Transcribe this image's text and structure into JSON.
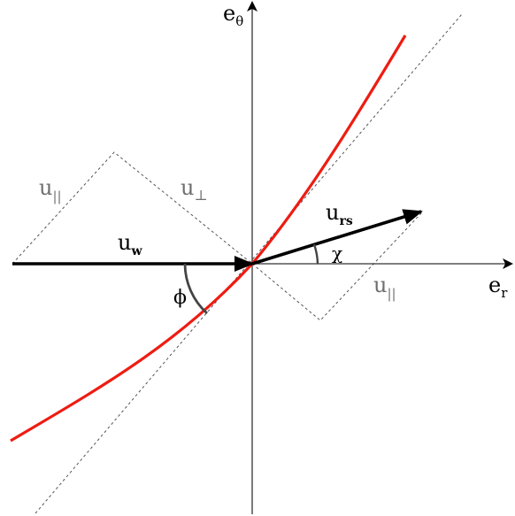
{
  "axes": {
    "e_r": {
      "main": "e",
      "sub": "r"
    },
    "e_theta": {
      "main": "e",
      "sub": "θ"
    }
  },
  "vectors": {
    "u_w": {
      "main": "u",
      "sub": "w"
    },
    "u_rs": {
      "main": "u",
      "sub": "rs"
    }
  },
  "components": {
    "u_par_left": {
      "main": "u",
      "sub": "||"
    },
    "u_perp": {
      "main": "u",
      "sub": "⊥"
    },
    "u_par_right": {
      "main": "u",
      "sub": "||"
    }
  },
  "angles": {
    "phi": "ϕ",
    "chi": "χ"
  },
  "colors": {
    "curve": "#ee1c12",
    "vector": "#000000",
    "axis": "#333333",
    "dashed": "#555555",
    "arc": "#444444",
    "gray_label": "#6e6e6e"
  }
}
